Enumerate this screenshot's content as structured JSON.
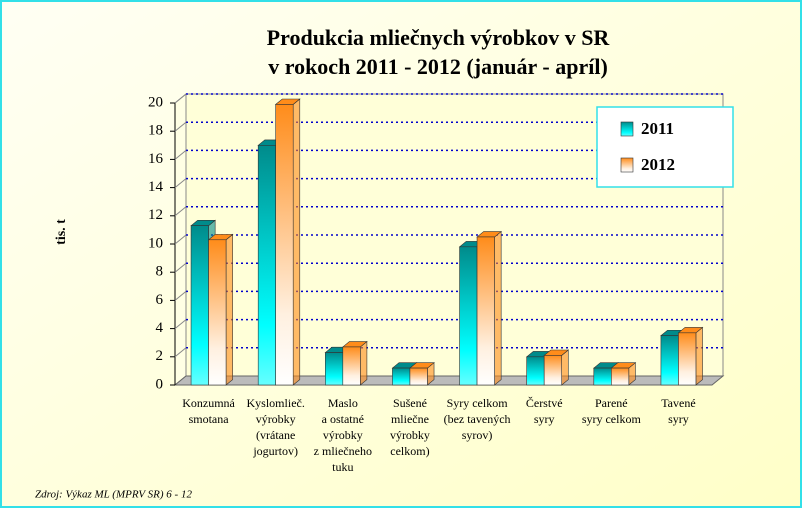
{
  "chart_data": {
    "type": "bar3d",
    "title": [
      "Produkcia mliečnych výrobkov v SR",
      "v rokoch 2011 - 2012 (január - apríl)"
    ],
    "y_label": "tis. t",
    "source": "Zdroj: Výkaz ML (MPRV SR) 6 - 12",
    "categories": [
      [
        "Konzumná",
        "smotana"
      ],
      [
        "Kyslomlieč.",
        "výrobky",
        "(vrátane",
        "jogurtov)"
      ],
      [
        "Maslo",
        "a ostatné",
        "výrobky",
        "z mliečneho",
        "tuku"
      ],
      [
        "Sušené",
        "mliečne",
        "výrobky",
        "celkom)"
      ],
      [
        "Syry celkom",
        "(bez tavených",
        "syrov)"
      ],
      [
        "Čerstvé",
        "syry"
      ],
      [
        "Parené",
        "syry celkom"
      ],
      [
        "Tavené",
        "syry"
      ]
    ],
    "series": [
      {
        "name": "2011",
        "color": "#008b8b",
        "values": [
          11.3,
          17.0,
          2.3,
          1.2,
          9.8,
          2.0,
          1.2,
          3.5
        ]
      },
      {
        "name": "2012",
        "color": "#ff8c1a",
        "values": [
          10.3,
          19.9,
          2.7,
          1.2,
          10.5,
          2.1,
          1.2,
          3.7
        ]
      }
    ],
    "ylim": [
      0,
      20
    ],
    "yticks": [
      0,
      2,
      4,
      6,
      8,
      10,
      12,
      14,
      16,
      18,
      20
    ],
    "grid": true,
    "legend": "top-right"
  }
}
